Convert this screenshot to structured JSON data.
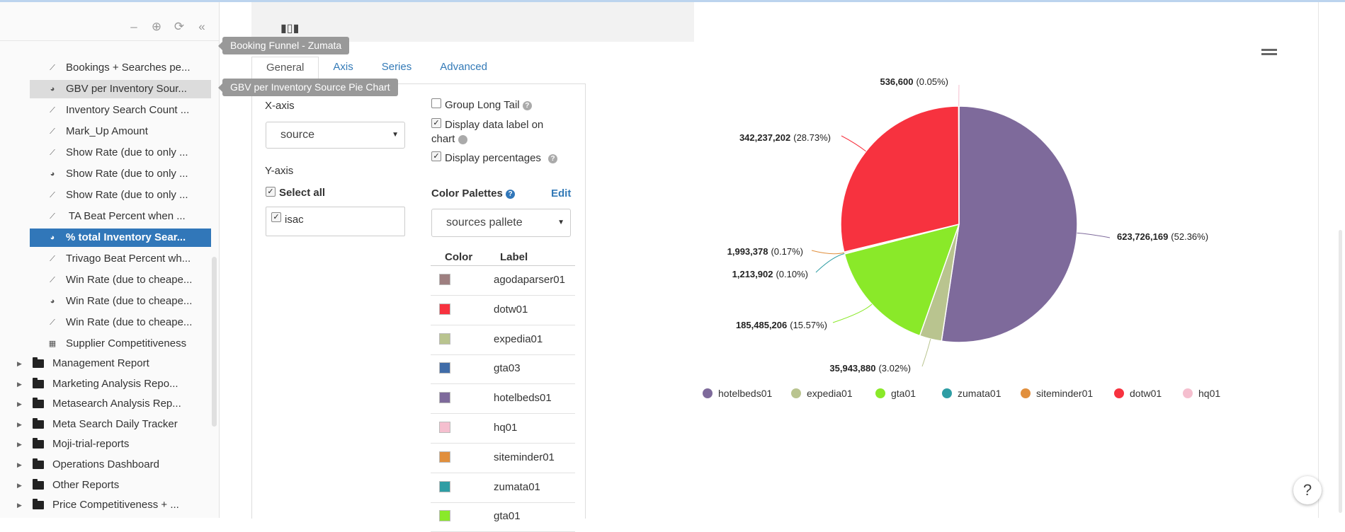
{
  "sidebar": {
    "controls": [
      "minimize-icon",
      "crosshair-icon",
      "refresh-icon",
      "collapse-icon"
    ],
    "sub_items": [
      {
        "label": "Bookings + Searches pe...",
        "icon": "line-chart-icon"
      },
      {
        "label": "GBV per Inventory Sour...",
        "icon": "pie-chart-icon",
        "state": "hover"
      },
      {
        "label": "Inventory Search Count ...",
        "icon": "line-chart-icon"
      },
      {
        "label": "Mark_Up Amount",
        "icon": "line-chart-icon"
      },
      {
        "label": "Show Rate (due to only ...",
        "icon": "line-chart-icon"
      },
      {
        "label": "Show Rate (due to only ...",
        "icon": "pie-chart-icon"
      },
      {
        "label": "Show Rate (due to only ...",
        "icon": "line-chart-icon"
      },
      {
        "label": " TA Beat Percent when ...",
        "icon": "line-chart-icon"
      },
      {
        "label": "% total Inventory Sear...",
        "icon": "pie-chart-icon",
        "state": "active"
      },
      {
        "label": "Trivago Beat Percent wh...",
        "icon": "line-chart-icon"
      },
      {
        "label": "Win Rate (due to cheape...",
        "icon": "line-chart-icon"
      },
      {
        "label": "Win Rate (due to cheape...",
        "icon": "pie-chart-icon"
      },
      {
        "label": "Win Rate (due to cheape...",
        "icon": "line-chart-icon"
      },
      {
        "label": "Supplier Competitiveness",
        "icon": "dashboard-icon"
      }
    ],
    "folders": [
      "Management Report",
      "Marketing Analysis Repo...",
      "Metasearch Analysis Rep...",
      "Meta Search Daily Tracker",
      "Moji-trial-reports",
      "Operations Dashboard",
      "Other Reports",
      "Price Competitiveness + ..."
    ],
    "tooltips": {
      "booking_funnel": "Booking Funnel - Zumata",
      "gbv": "GBV per Inventory Source Pie Chart"
    }
  },
  "editor": {
    "tabs": [
      "General",
      "Axis",
      "Series",
      "Advanced"
    ],
    "active_tab": "General",
    "xaxis_label": "X-axis",
    "xaxis_value": "source",
    "yaxis_label": "Y-axis",
    "select_all_label": "Select all",
    "yaxis_items": [
      "isac"
    ],
    "options": {
      "group_long_tail": "Group Long Tail",
      "display_data_label": "Display data label on chart",
      "display_percentages": "Display percentages"
    },
    "palette_label": "Color Palettes",
    "edit_label": "Edit",
    "palette_value": "sources pallete",
    "color_table": {
      "headers": [
        "Color",
        "Label"
      ],
      "rows": [
        {
          "label": "agodaparser01",
          "color": "#9e7f80"
        },
        {
          "label": "dotw01",
          "color": "#f7323f"
        },
        {
          "label": "expedia01",
          "color": "#b9c48f"
        },
        {
          "label": "gta03",
          "color": "#406ca8"
        },
        {
          "label": "hotelbeds01",
          "color": "#7e6a9b"
        },
        {
          "label": "hq01",
          "color": "#f5bfcf"
        },
        {
          "label": "siteminder01",
          "color": "#e18f3d"
        },
        {
          "label": "zumata01",
          "color": "#2e9da4"
        },
        {
          "label": "gta01",
          "color": "#8ae929"
        }
      ]
    }
  },
  "chart_data": {
    "type": "pie",
    "slices": [
      {
        "name": "hotelbeds01",
        "value": 623726169,
        "percent": "52.36%",
        "color": "#7e6a9b"
      },
      {
        "name": "expedia01",
        "value": 35943880,
        "percent": "3.02%",
        "color": "#b9c48f"
      },
      {
        "name": "gta01",
        "value": 185485206,
        "percent": "15.57%",
        "color": "#8ae929"
      },
      {
        "name": "zumata01",
        "value": 1213902,
        "percent": "0.10%",
        "color": "#2e9da4"
      },
      {
        "name": "siteminder01",
        "value": 1993378,
        "percent": "0.17%",
        "color": "#e18f3d"
      },
      {
        "name": "dotw01",
        "value": 342237202,
        "percent": "28.73%",
        "color": "#f7323f"
      },
      {
        "name": "hq01",
        "value": 536600,
        "percent": "0.05%",
        "color": "#f5bfcf"
      }
    ],
    "data_labels": [
      {
        "value": "536,600",
        "percent": "(0.05%)"
      },
      {
        "value": "342,237,202",
        "percent": "(28.73%)"
      },
      {
        "value": "623,726,169",
        "percent": "(52.36%)"
      },
      {
        "value": "1,993,378",
        "percent": "(0.17%)"
      },
      {
        "value": "1,213,902",
        "percent": "(0.10%)"
      },
      {
        "value": "185,485,206",
        "percent": "(15.57%)"
      },
      {
        "value": "35,943,880",
        "percent": "(3.02%)"
      }
    ],
    "legend": [
      "hotelbeds01",
      "expedia01",
      "gta01",
      "zumata01",
      "siteminder01",
      "dotw01",
      "hq01"
    ],
    "legend_position": "bottom"
  },
  "misc": {
    "help_button": "?",
    "chart_menu_icon": "hamburger-icon"
  }
}
